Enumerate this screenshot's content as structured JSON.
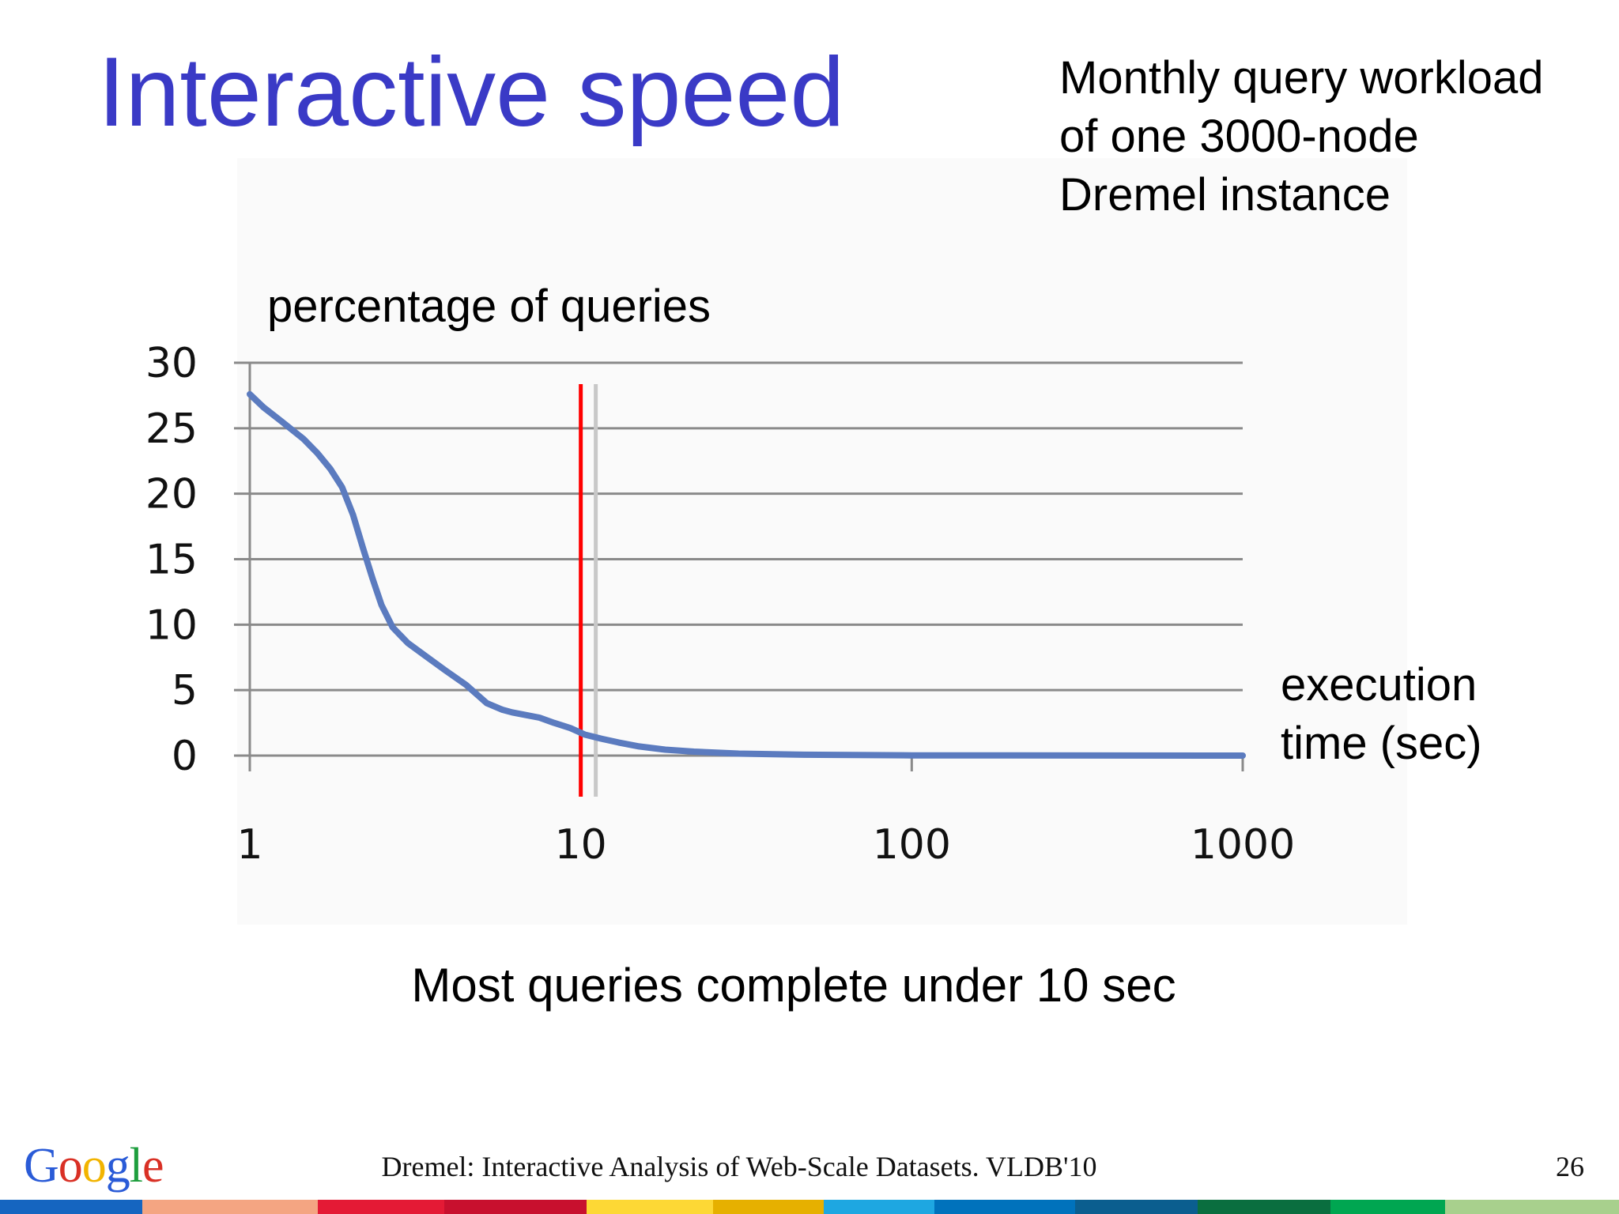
{
  "slide": {
    "title": "Interactive speed",
    "description_lines": [
      "Monthly query workload",
      "of one 3000-node",
      "Dremel instance"
    ],
    "caption": "Most queries complete under 10 sec",
    "footer": "Dremel: Interactive Analysis of Web-Scale Datasets. VLDB'10",
    "page_number": "26",
    "logo_letters": [
      "G",
      "o",
      "o",
      "g",
      "l",
      "e"
    ],
    "logo_colors": [
      "#2a5bd7",
      "#d93025",
      "#f2b400",
      "#2a5bd7",
      "#1e9e3e",
      "#d93025"
    ],
    "stripe_colors": [
      "#1565c0",
      "#f4a582",
      "#e41a35",
      "#c8102e",
      "#fdd835",
      "#e6b000",
      "#1ea7e1",
      "#0072bc",
      "#0b5e8f",
      "#0a6e3f",
      "#00a651",
      "#a8d08d"
    ]
  },
  "chart_data": {
    "type": "line",
    "title": "",
    "xlabel_lines": [
      "execution",
      "time (sec)"
    ],
    "ylabel": "percentage of queries",
    "xscale": "log",
    "xlim": [
      1,
      1000
    ],
    "ylim": [
      0,
      30
    ],
    "x_ticks": [
      1,
      10,
      100,
      1000
    ],
    "x_tick_labels": [
      "1",
      "10",
      "100",
      "1000"
    ],
    "y_ticks": [
      0,
      5,
      10,
      15,
      20,
      25,
      30
    ],
    "y_tick_labels": [
      "0",
      "5",
      "10",
      "15",
      "20",
      "25",
      "30"
    ],
    "grid": "horizontal",
    "series": [
      {
        "color": "#5b7bbf",
        "x": [
          1,
          1.1,
          1.25,
          1.45,
          1.6,
          1.75,
          1.9,
          2.05,
          2.2,
          2.35,
          2.5,
          2.7,
          3.0,
          3.4,
          3.9,
          4.5,
          5.2,
          5.8,
          6.2,
          6.8,
          7.5,
          8.3,
          9.3,
          10.3,
          11.5,
          13,
          15,
          18,
          22,
          30,
          45,
          100,
          1000
        ],
        "y": [
          27.6,
          26.6,
          25.5,
          24.2,
          23.1,
          21.9,
          20.5,
          18.4,
          15.8,
          13.5,
          11.5,
          9.8,
          8.6,
          7.6,
          6.5,
          5.4,
          4.0,
          3.5,
          3.3,
          3.1,
          2.9,
          2.5,
          2.1,
          1.6,
          1.3,
          1.0,
          0.7,
          0.45,
          0.3,
          0.15,
          0.07,
          0.02,
          0.0
        ]
      }
    ],
    "annotations": [
      {
        "type": "vline",
        "x": 10,
        "color": "#ff0000"
      },
      {
        "type": "vline",
        "x": 11.1,
        "color": "#c8c8c8"
      }
    ]
  }
}
